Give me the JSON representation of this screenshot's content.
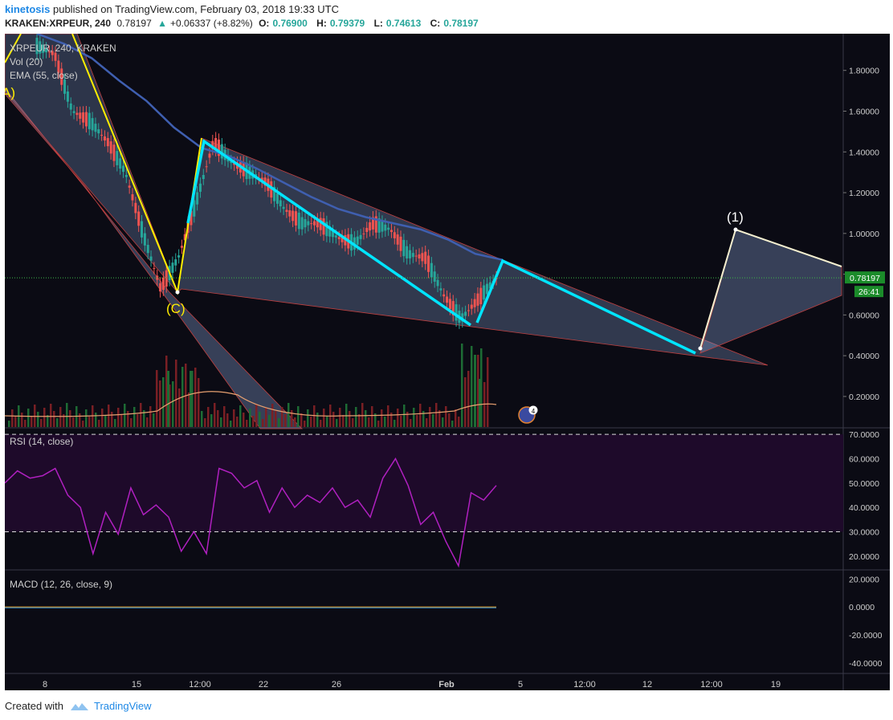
{
  "header": {
    "author": "kinetosis",
    "published": "published on TradingView.com, February 03, 2018 19:33 UTC",
    "symbol": "KRAKEN:XRPEUR, 240",
    "last": "0.78197",
    "change": "+0.06337 (+8.82%)",
    "o_label": "O:",
    "o_val": "0.76900",
    "h_label": "H:",
    "h_val": "0.79379",
    "l_label": "L:",
    "l_val": "0.74613",
    "c_label": "C:",
    "c_val": "0.78197"
  },
  "legend": {
    "symbol": "XRPEUR, 240, KRAKEN",
    "vol": "Vol (20)",
    "ema": "EMA (55, close)",
    "rsi": "RSI (14, close)",
    "macd": "MACD (12, 26, close, 9)"
  },
  "labels": {
    "wave_c": "(C)",
    "wave_a_fragment": "A)",
    "wave_1": "(1)",
    "price_badge": "0.78197",
    "time_badge": "26:41",
    "bubble": "4"
  },
  "footer": {
    "created": "Created with",
    "brand": "TradingView"
  },
  "colors": {
    "background": "#0b0b14",
    "up": "#26a69a",
    "down": "#ef5350",
    "ema": "#3f5fb0",
    "rsi": "#b020c0",
    "yellow_line": "#ffee00",
    "cyan_line": "#00e5ff",
    "white_line": "#ffffff",
    "badge": "#1b8b2a"
  },
  "chart_data": [
    {
      "type": "line",
      "name": "price",
      "x_ticks": [
        "8",
        "15",
        "12:00",
        "22",
        "26",
        "Feb",
        "5",
        "12:00",
        "12",
        "12:00",
        "19"
      ],
      "y_ticks": [
        "0.20000",
        "0.40000",
        "0.60000",
        "0.80000",
        "1.00000",
        "1.20000",
        "1.40000",
        "1.60000",
        "1.80000"
      ],
      "ylim": [
        0.05,
        1.98
      ],
      "price_path": [
        1.92,
        1.88,
        1.6,
        1.55,
        1.45,
        1.3,
        1.0,
        0.73,
        0.88,
        1.15,
        1.45,
        1.35,
        1.3,
        1.25,
        1.12,
        1.05,
        1.05,
        0.98,
        0.95,
        1.05,
        1.02,
        0.9,
        0.88,
        0.7,
        0.58,
        0.68,
        0.78
      ],
      "ema": [
        1.98,
        1.93,
        1.86,
        1.75,
        1.65,
        1.52,
        1.42,
        1.38,
        1.32,
        1.25,
        1.18,
        1.12,
        1.08,
        1.05,
        1.02,
        0.97,
        0.9,
        0.87
      ],
      "volume_events": [
        0.2,
        0.42,
        0.45,
        0.55,
        0.28
      ]
    },
    {
      "type": "line",
      "name": "RSI (14, close)",
      "y_ticks": [
        "20.0000",
        "30.0000",
        "40.0000",
        "50.0000",
        "60.0000",
        "70.0000"
      ],
      "ylim": [
        15,
        72
      ],
      "bands": [
        30,
        70
      ],
      "values": [
        50,
        55,
        52,
        53,
        56,
        45,
        40,
        21,
        38,
        29,
        48,
        37,
        41,
        36,
        22,
        30,
        21,
        56,
        54,
        48,
        51,
        38,
        48,
        40,
        45,
        42,
        48,
        40,
        43,
        36,
        52,
        60,
        49,
        33,
        38,
        26,
        16,
        46,
        43,
        49
      ]
    },
    {
      "type": "line",
      "name": "MACD (12, 26, close, 9)",
      "y_ticks": [
        "-40.0000",
        "-20.0000",
        "0.0000",
        "20.0000"
      ],
      "ylim": [
        -47,
        26
      ],
      "values": [
        0,
        0
      ]
    }
  ]
}
